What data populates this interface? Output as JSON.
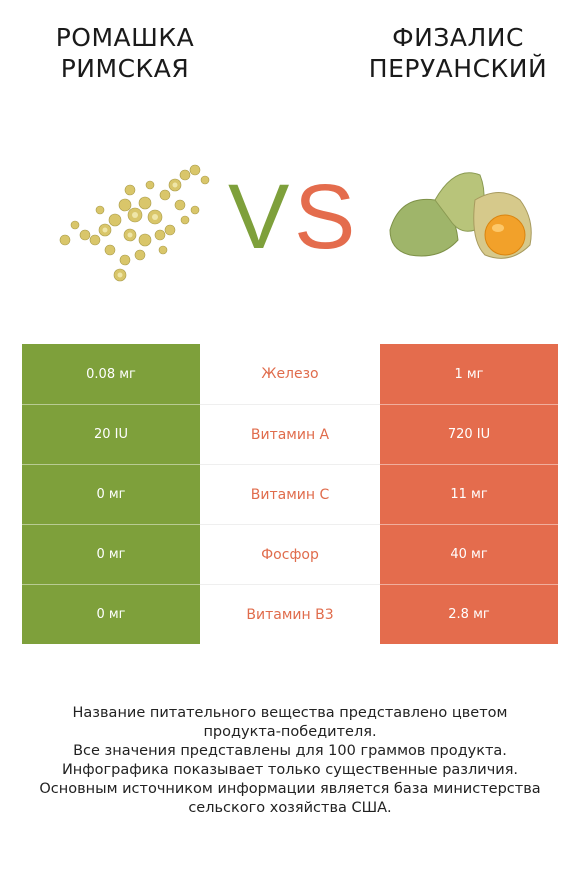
{
  "header": {
    "left_title": "Ромашка римская",
    "right_title": "Физалис перуанский"
  },
  "images": {
    "left": "chamomile-image",
    "right": "physalis-image"
  },
  "vs": {
    "v": "V",
    "s": "S"
  },
  "colors": {
    "left_accent": "#7ea03b",
    "right_accent": "#e46c4d",
    "label_color": "#e06c4c"
  },
  "chart_data": {
    "type": "table",
    "columns": [
      "Ромашка римская",
      "",
      "Физалис перуанский"
    ],
    "rows": [
      {
        "nutrient": "Железо",
        "left": "0.08 мг",
        "right": "1 мг"
      },
      {
        "nutrient": "Витамин A",
        "left": "20 IU",
        "right": "720 IU"
      },
      {
        "nutrient": "Витамин C",
        "left": "0 мг",
        "right": "11 мг"
      },
      {
        "nutrient": "Фосфор",
        "left": "0 мг",
        "right": "40 мг"
      },
      {
        "nutrient": "Витамин B3",
        "left": "0 мг",
        "right": "2.8 мг"
      }
    ]
  },
  "notes": [
    "Название питательного вещества представлено цветом",
    "продукта-победителя.",
    "Все значения представлены для 100 граммов продукта.",
    "Инфографика показывает только существенные различия.",
    "Основным источником информации является база министерства",
    "сельского хозяйства США."
  ]
}
